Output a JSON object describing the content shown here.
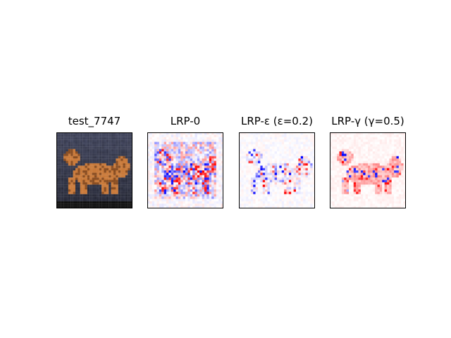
{
  "figure": {
    "panels": [
      {
        "title": "test_7747",
        "kind": "image"
      },
      {
        "title": "LRP-0",
        "kind": "heatmap",
        "pattern": "noisy"
      },
      {
        "title": "LRP-ε (ε=0.2)",
        "kind": "heatmap",
        "pattern": "sparse"
      },
      {
        "title": "LRP-γ (γ=0.5)",
        "kind": "heatmap",
        "pattern": "smooth"
      }
    ],
    "colormap": {
      "negative": "#0000ff",
      "neutral": "#ffffff",
      "positive": "#ff0000"
    },
    "image_colors": {
      "background": "#3a4256",
      "floor": "#111111",
      "cat": "#c97a3a",
      "cat_dark": "#8a4e22"
    }
  }
}
